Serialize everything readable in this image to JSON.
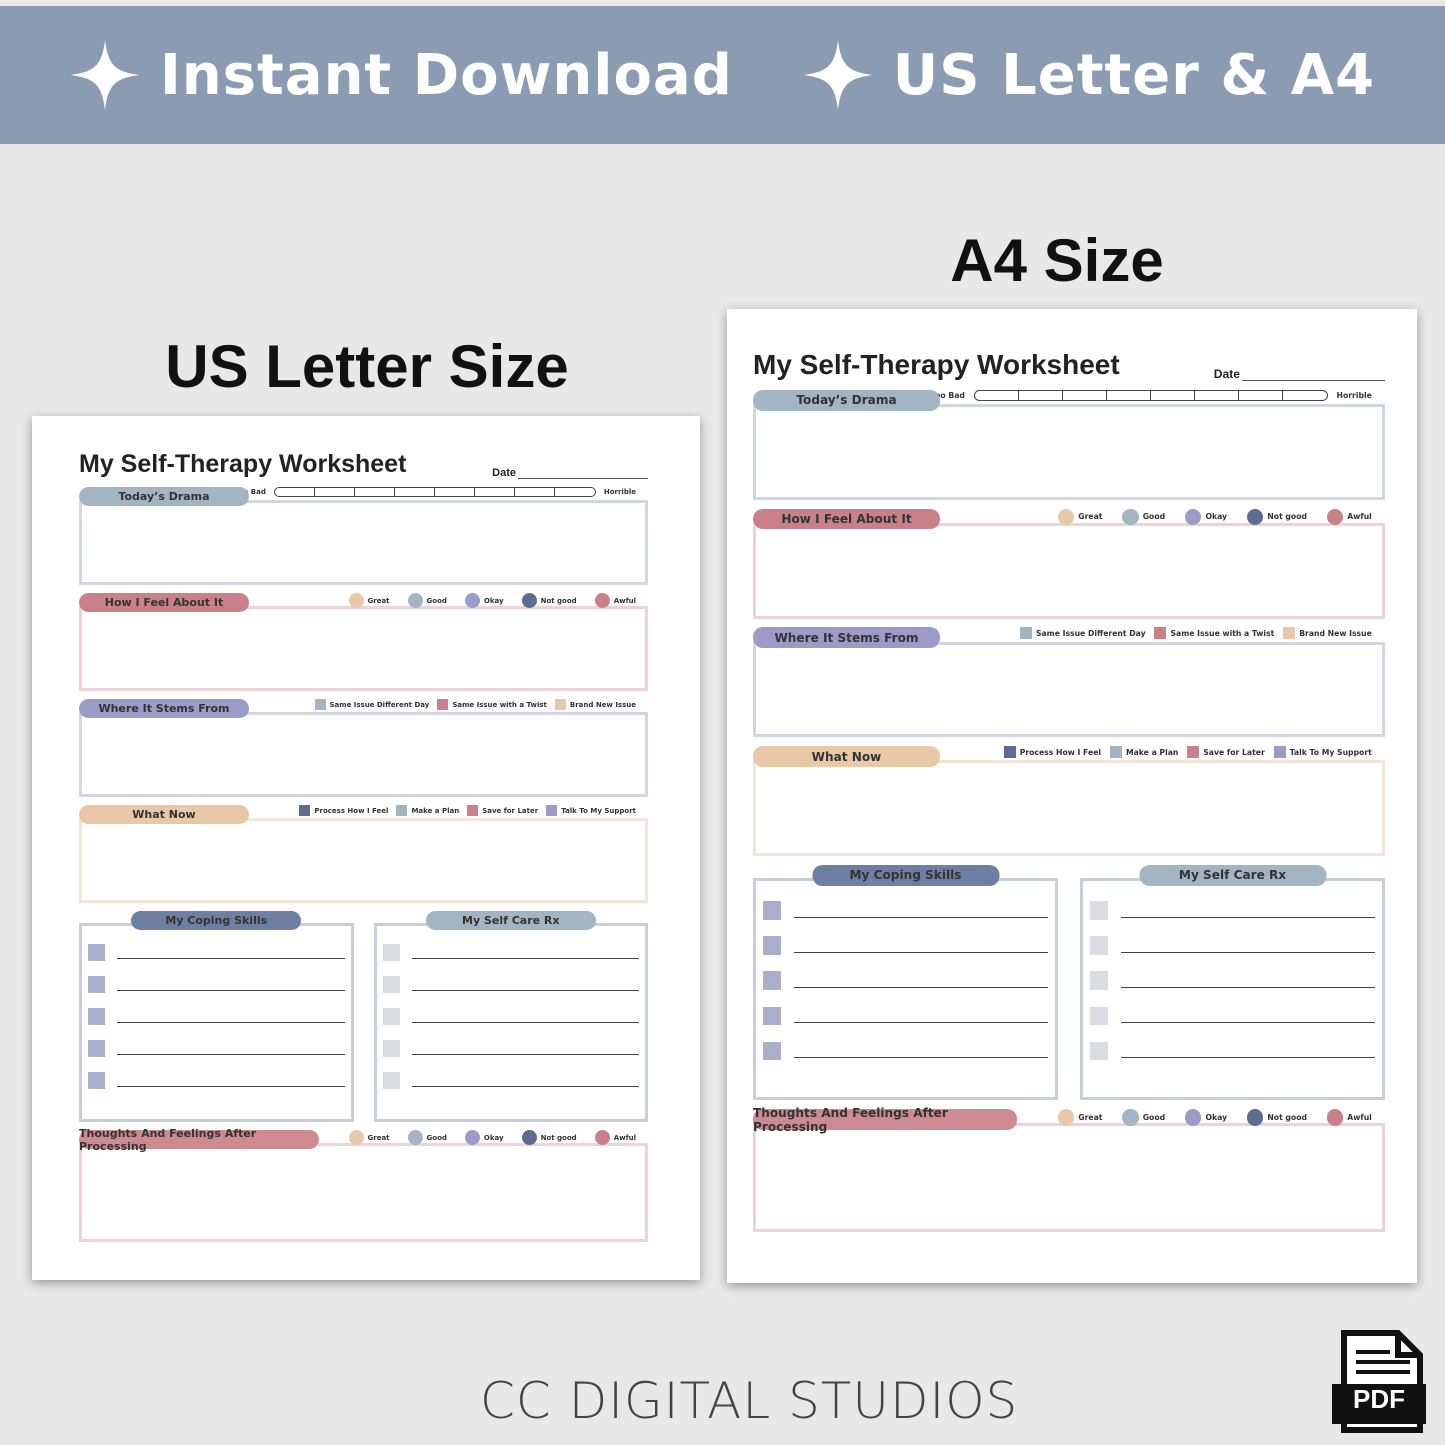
{
  "banner": {
    "items": [
      {
        "label": "Instant Download",
        "icon": "sparkle-star-icon"
      },
      {
        "label": "US Letter & A4",
        "icon": "sparkle-star-icon"
      }
    ],
    "color": "#8b9bb2"
  },
  "letter": {
    "heading": "US Letter Size"
  },
  "a4": {
    "heading": "A4 Size"
  },
  "worksheet": {
    "title": "My Self-Therapy Worksheet",
    "date_label": "Date",
    "drama": {
      "label": "Today’s Drama",
      "scale_min": "Not Too Bad",
      "scale_max": "Horrible",
      "scale_segments": 8,
      "color": "#a3b5c2",
      "border": "#cfd8de"
    },
    "feel": {
      "label": "How I Feel About It",
      "color": "#c98088",
      "border": "#ecd3d5"
    },
    "stems": {
      "label": "Where It Stems From",
      "color": "#9a9bc6",
      "border": "#d4d4e4",
      "legend": [
        {
          "label": "Same Issue Different Day",
          "color": "#a3b5c2"
        },
        {
          "label": "Same Issue with a Twist",
          "color": "#c98088"
        },
        {
          "label": "Brand New Issue",
          "color": "#e8c8a6"
        }
      ]
    },
    "what": {
      "label": "What Now",
      "color": "#e8c8a6",
      "border": "#f2e4d6",
      "legend": [
        {
          "label": "Process How I Feel",
          "color": "#5d6d91"
        },
        {
          "label": "Make a Plan",
          "color": "#a3b5c2"
        },
        {
          "label": "Save for Later",
          "color": "#c98088"
        },
        {
          "label": "Talk To My Support",
          "color": "#9a9bc6"
        }
      ]
    },
    "coping": {
      "label": "My Coping Skills",
      "color": "#6f7fa3",
      "border": "#c6ced8",
      "checkbox": "#a9afc8",
      "rows": 5
    },
    "selfcare": {
      "label": "My Self Care Rx",
      "color": "#a3b5c2",
      "border": "#c6ced8",
      "checkbox": "#d9dde2",
      "rows": 5
    },
    "thoughts": {
      "label": "Thoughts And Feelings After Processing",
      "color": "#cd8a90",
      "border": "#ecd3d5"
    },
    "moods": [
      {
        "label": "Great",
        "color": "#e8c8a6",
        "face": "😍"
      },
      {
        "label": "Good",
        "color": "#a3b5c2",
        "face": "☺"
      },
      {
        "label": "Okay",
        "color": "#9a9bc6",
        "face": "😐"
      },
      {
        "label": "Not good",
        "color": "#5d6d91",
        "face": "☹"
      },
      {
        "label": "Awful",
        "color": "#c98088",
        "face": "😢"
      }
    ]
  },
  "footer": {
    "brand": "CC DIGITAL STUDIOS",
    "pdf_label": "PDF"
  }
}
